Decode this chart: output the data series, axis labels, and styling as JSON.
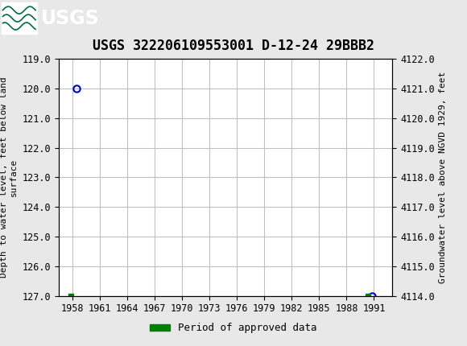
{
  "title": "USGS 322206109553001 D-12-24 29BBB2",
  "ylabel_left": "Depth to water level, feet below land\nsurface",
  "ylabel_right": "Groundwater level above NGVD 1929, feet",
  "header_color": "#006b3c",
  "background_color": "#e8e8e8",
  "plot_bg_color": "#ffffff",
  "grid_color": "#c0c0c0",
  "ylim_left_top": 119.0,
  "ylim_left_bottom": 127.0,
  "ylim_right_top": 4122.0,
  "ylim_right_bottom": 4114.0,
  "xlim": [
    1956.5,
    1993.0
  ],
  "xticks": [
    1958,
    1961,
    1964,
    1967,
    1970,
    1973,
    1976,
    1979,
    1982,
    1985,
    1988,
    1991
  ],
  "yticks_left": [
    119.0,
    120.0,
    121.0,
    122.0,
    123.0,
    124.0,
    125.0,
    126.0,
    127.0
  ],
  "yticks_right": [
    4122.0,
    4121.0,
    4120.0,
    4119.0,
    4118.0,
    4117.0,
    4116.0,
    4115.0,
    4114.0
  ],
  "pt1_x": 1958.5,
  "pt1_y": 120.0,
  "pt2_x": 1957.85,
  "pt2_y": 127.0,
  "pt3_x": 1990.75,
  "pt3_y": 127.0,
  "pt4_x": 1990.35,
  "pt4_y": 127.0,
  "legend_label": "Period of approved data",
  "legend_color": "#008000",
  "title_fontsize": 12,
  "axis_fontsize": 8,
  "tick_fontsize": 8.5
}
